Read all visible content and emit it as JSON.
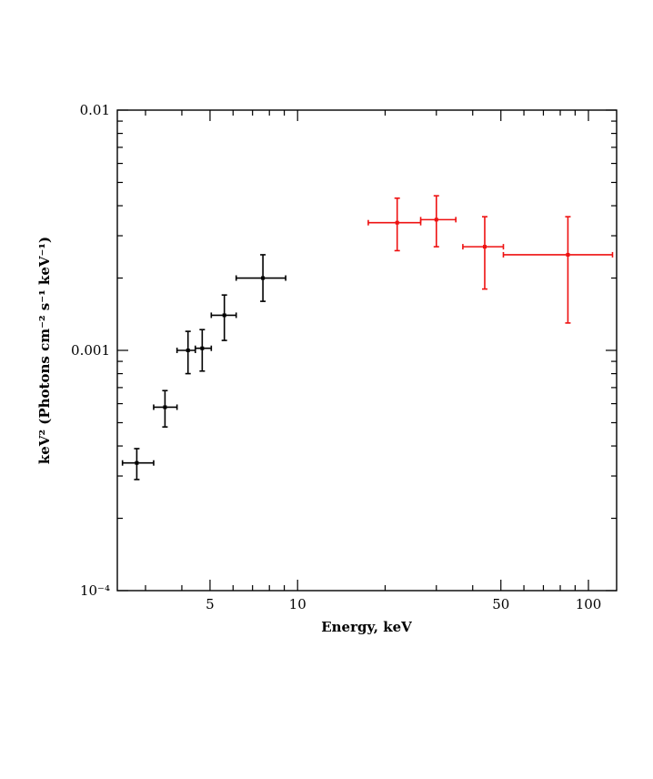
{
  "chart_data": {
    "type": "scatter",
    "xlabel": "Energy, keV",
    "ylabel": "keV² (Photons cm⁻² s⁻¹ keV⁻¹)",
    "x_scale": "log",
    "y_scale": "log",
    "xlim": [
      2.4,
      125
    ],
    "ylim": [
      0.0001,
      0.01
    ],
    "x_ticks": [
      {
        "value": 5,
        "label": "5"
      },
      {
        "value": 10,
        "label": "10"
      },
      {
        "value": 50,
        "label": "50"
      },
      {
        "value": 100,
        "label": "100"
      }
    ],
    "y_ticks": [
      {
        "value": 0.0001,
        "label": "10⁻⁴"
      },
      {
        "value": 0.001,
        "label": "0.001"
      },
      {
        "value": 0.01,
        "label": "0.01"
      }
    ],
    "grid": false,
    "legend": "none",
    "series": [
      {
        "color": "#000000",
        "points": [
          {
            "x": 2.8,
            "xlo": 2.5,
            "xhi": 3.2,
            "y": 0.00034,
            "ylo": 0.00029,
            "yhi": 0.00039
          },
          {
            "x": 3.5,
            "xlo": 3.2,
            "xhi": 3.85,
            "y": 0.00058,
            "ylo": 0.00048,
            "yhi": 0.00068
          },
          {
            "x": 4.2,
            "xlo": 3.85,
            "xhi": 4.45,
            "y": 0.001,
            "ylo": 0.0008,
            "yhi": 0.0012
          },
          {
            "x": 4.7,
            "xlo": 4.45,
            "xhi": 5.05,
            "y": 0.00102,
            "ylo": 0.00082,
            "yhi": 0.00122
          },
          {
            "x": 5.6,
            "xlo": 5.05,
            "xhi": 6.15,
            "y": 0.0014,
            "ylo": 0.0011,
            "yhi": 0.0017
          },
          {
            "x": 7.6,
            "xlo": 6.15,
            "xhi": 9.1,
            "y": 0.002,
            "ylo": 0.0016,
            "yhi": 0.0025
          }
        ]
      },
      {
        "color": "#ee1111",
        "points": [
          {
            "x": 22,
            "xlo": 17.5,
            "xhi": 26.5,
            "y": 0.0034,
            "ylo": 0.0026,
            "yhi": 0.0043
          },
          {
            "x": 30,
            "xlo": 26.5,
            "xhi": 35,
            "y": 0.0035,
            "ylo": 0.0027,
            "yhi": 0.0044
          },
          {
            "x": 44,
            "xlo": 37,
            "xhi": 51,
            "y": 0.0027,
            "ylo": 0.0018,
            "yhi": 0.0036
          },
          {
            "x": 85,
            "xlo": 51,
            "xhi": 121,
            "y": 0.0025,
            "ylo": 0.0013,
            "yhi": 0.0036
          }
        ]
      }
    ]
  }
}
